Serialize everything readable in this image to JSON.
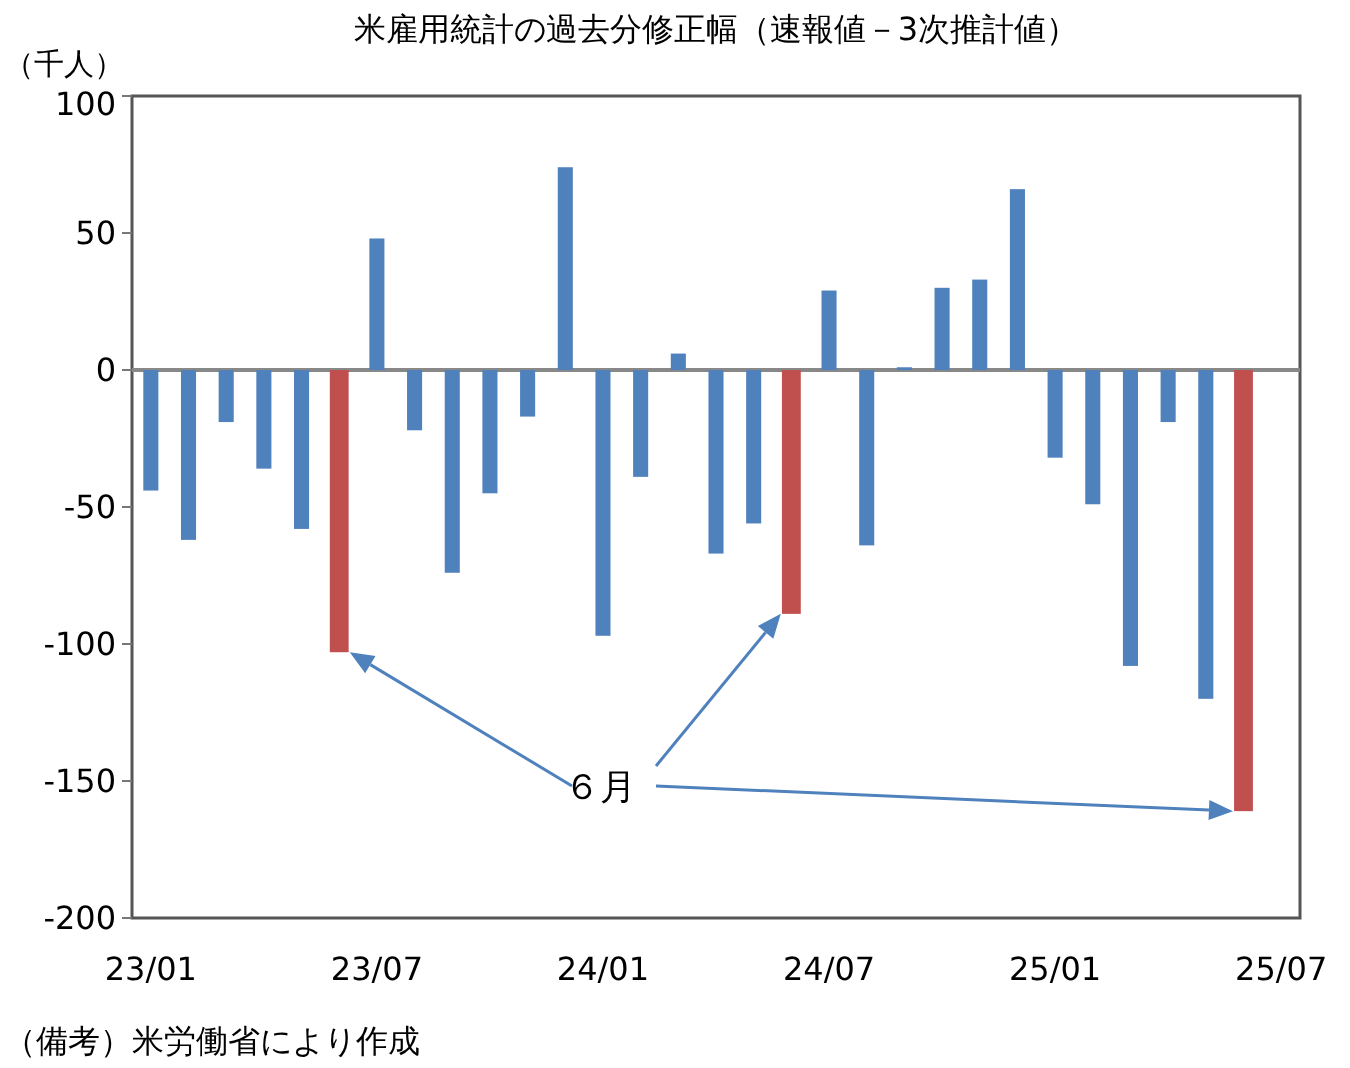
{
  "chart_data": {
    "type": "bar",
    "title": "米雇用統計の過去分修正幅（速報値－3次推計値）",
    "ylabel": "（千人）",
    "categories": [
      "23/01",
      null,
      null,
      null,
      null,
      null,
      "23/07",
      null,
      null,
      null,
      null,
      null,
      "24/01",
      null,
      null,
      null,
      null,
      null,
      "24/07",
      null,
      null,
      null,
      null,
      null,
      "25/01",
      null,
      null,
      null,
      null,
      null,
      "25/07"
    ],
    "values": [
      -44,
      -62,
      -19,
      -36,
      -58,
      -103,
      48,
      -22,
      -74,
      -45,
      -17,
      74,
      -97,
      -39,
      6,
      -67,
      -56,
      -89,
      29,
      -64,
      1,
      30,
      33,
      66,
      -32,
      -49,
      -108,
      -19,
      -120,
      -161,
      null
    ],
    "color": "#4f81bd",
    "colors": [
      "#4f81bd",
      "#4f81bd",
      "#4f81bd",
      "#4f81bd",
      "#4f81bd",
      "#c0504d",
      "#4f81bd",
      "#4f81bd",
      "#4f81bd",
      "#4f81bd",
      "#4f81bd",
      "#4f81bd",
      "#4f81bd",
      "#4f81bd",
      "#4f81bd",
      "#4f81bd",
      "#4f81bd",
      "#c0504d",
      "#4f81bd",
      "#4f81bd",
      "#4f81bd",
      "#4f81bd",
      "#4f81bd",
      "#4f81bd",
      "#4f81bd",
      "#4f81bd",
      "#4f81bd",
      "#4f81bd",
      "#4f81bd",
      "#c0504d",
      null
    ],
    "ylim": [
      -200,
      100
    ],
    "yticks": [
      -200,
      -150,
      -100,
      -50,
      0,
      50,
      100
    ],
    "annotations": [
      "６月",
      "（備考）米労働省により作成"
    ]
  }
}
